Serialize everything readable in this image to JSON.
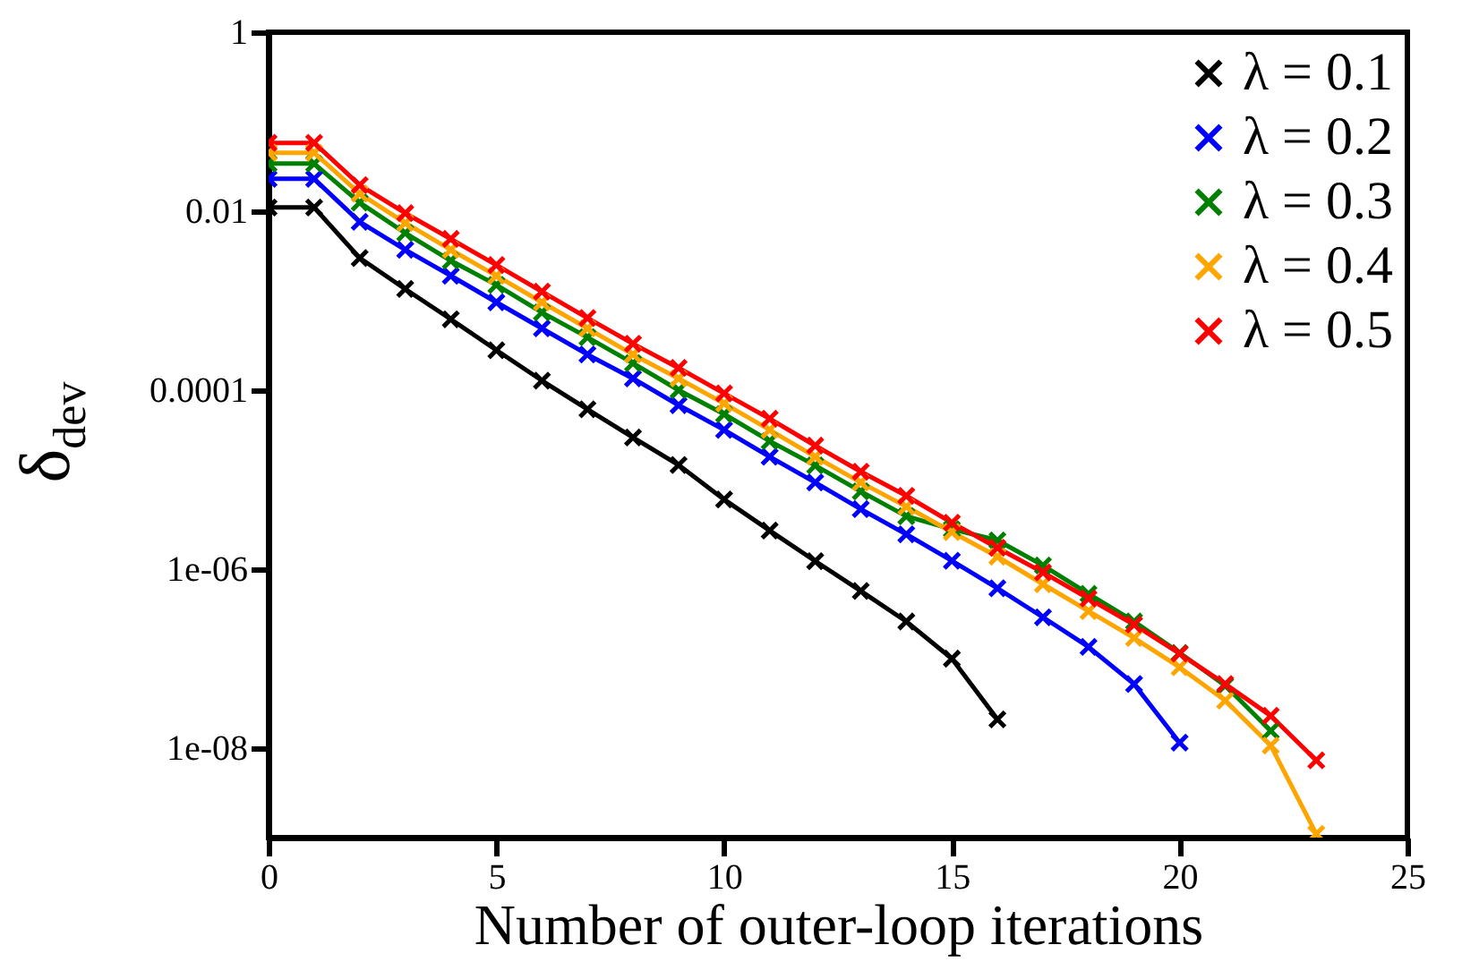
{
  "chart_data": {
    "type": "line",
    "xlabel": "Number of outer-loop iterations",
    "ylabel": "δ$_{dev}$",
    "log": "y",
    "grid": false,
    "legend": "top right",
    "marker": "cross",
    "line_style": "solid",
    "xlim": [
      0,
      25
    ],
    "xticks": [
      0,
      5,
      10,
      15,
      20,
      25
    ],
    "ylim": [
      1e-09,
      1
    ],
    "yticks": [
      1,
      0.01,
      0.0001,
      {
        "value": 1e-06,
        "label": "1e-06"
      },
      {
        "value": 1e-08,
        "label": "1e-08"
      }
    ],
    "series": [
      {
        "name": "λ = 0.1",
        "color": "#000000",
        "x": [
          0,
          1,
          2,
          3,
          4,
          5,
          6,
          7,
          8,
          9,
          10,
          11,
          12,
          13,
          14,
          15,
          16
        ],
        "values": [
          0.011,
          0.011,
          0.003,
          0.00135,
          0.00062,
          0.00028,
          0.000128,
          6.1e-05,
          2.96e-05,
          1.46e-05,
          6e-06,
          2.7e-06,
          1.23e-06,
          5.7e-07,
          2.6e-07,
          1e-07,
          2.1e-08
        ]
      },
      {
        "name": "λ = 0.2",
        "color": "#0000ff",
        "x": [
          0,
          1,
          2,
          3,
          4,
          5,
          6,
          7,
          8,
          9,
          10,
          11,
          12,
          13,
          14,
          15,
          16,
          17,
          18,
          19,
          20
        ],
        "values": [
          0.023,
          0.023,
          0.0076,
          0.0037,
          0.0019,
          0.00096,
          0.00049,
          0.00025,
          0.000135,
          6.8e-05,
          3.6e-05,
          1.8e-05,
          9.3e-06,
          4.7e-06,
          2.45e-06,
          1.24e-06,
          6.1e-07,
          2.9e-07,
          1.35e-07,
          5.2e-08,
          1.15e-08
        ]
      },
      {
        "name": "λ = 0.3",
        "color": "#008000",
        "x": [
          0,
          1,
          2,
          3,
          4,
          5,
          6,
          7,
          8,
          9,
          10,
          11,
          12,
          13,
          14,
          15,
          16,
          17,
          18,
          19,
          20,
          21,
          22
        ],
        "values": [
          0.034,
          0.034,
          0.0125,
          0.0057,
          0.0028,
          0.0015,
          0.00074,
          0.00039,
          0.0002,
          0.0001,
          5.4e-05,
          2.7e-05,
          1.44e-05,
          7.4e-06,
          3.9e-06,
          2.8e-06,
          2.1e-06,
          1.1e-06,
          5.3e-07,
          2.6e-07,
          1.16e-07,
          5e-08,
          1.56e-08
        ]
      },
      {
        "name": "λ = 0.4",
        "color": "#ffa500",
        "x": [
          0,
          1,
          2,
          3,
          4,
          5,
          6,
          7,
          8,
          9,
          10,
          11,
          12,
          13,
          14,
          15,
          16,
          17,
          18,
          19,
          20,
          21,
          22,
          23
        ],
        "values": [
          0.045,
          0.045,
          0.0157,
          0.0074,
          0.0037,
          0.0019,
          0.00096,
          0.00049,
          0.00025,
          0.000135,
          7.1e-05,
          3.6e-05,
          1.8e-05,
          9.3e-06,
          5e-06,
          2.6e-06,
          1.38e-06,
          6.8e-07,
          3.4e-07,
          1.7e-07,
          8e-08,
          3.4e-08,
          1.07e-08,
          1.1e-09
        ]
      },
      {
        "name": "λ = 0.5",
        "color": "#ff0000",
        "x": [
          0,
          1,
          2,
          3,
          4,
          5,
          6,
          7,
          8,
          9,
          10,
          11,
          12,
          13,
          14,
          15,
          16,
          17,
          18,
          19,
          20,
          21,
          22,
          23
        ],
        "values": [
          0.058,
          0.058,
          0.0196,
          0.0095,
          0.0049,
          0.0025,
          0.00126,
          0.00064,
          0.00033,
          0.000177,
          9.2e-05,
          4.8e-05,
          2.4e-05,
          1.23e-05,
          6.6e-06,
          3.3e-06,
          1.73e-06,
          9.2e-07,
          4.7e-07,
          2.4e-07,
          1.14e-07,
          5.2e-08,
          2.3e-08,
          7.3e-09
        ]
      }
    ]
  }
}
